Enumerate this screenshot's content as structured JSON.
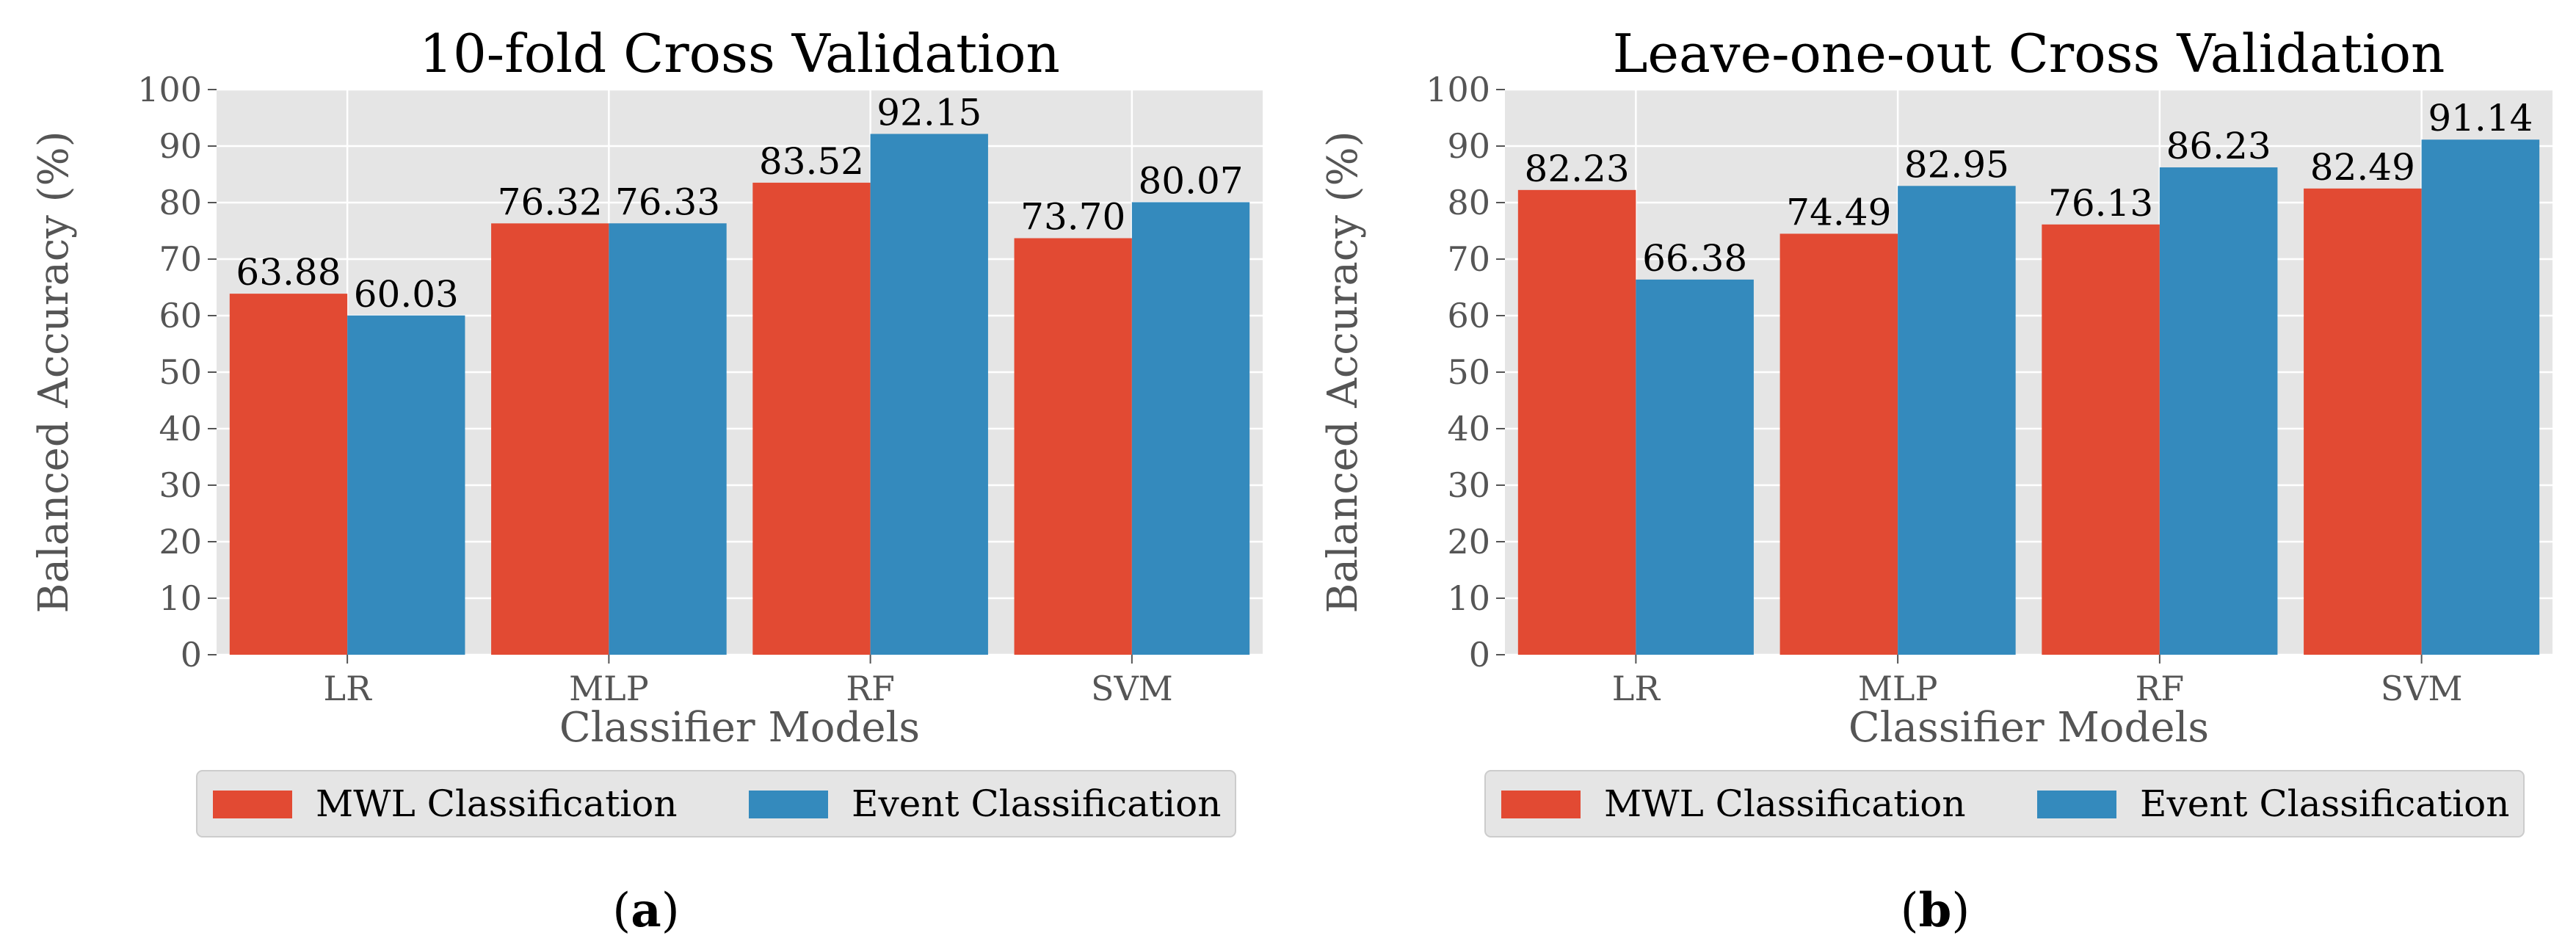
{
  "colors": {
    "mwl": "#E24A33",
    "event": "#348ABD",
    "plot_bg": "#E5E5E5",
    "grid": "#FFFFFF",
    "legend_bg": "#E5E5E5"
  },
  "legend": {
    "mwl": "MWL Classification",
    "event": "Event Classification"
  },
  "chart_data": [
    {
      "type": "bar",
      "title": "10-fold Cross Validation",
      "xlabel": "Classifier Models",
      "ylabel": "Balanced Accuracy (%)",
      "categories": [
        "LR",
        "MLP",
        "RF",
        "SVM"
      ],
      "ylim": [
        0,
        100
      ],
      "yticks": [
        0,
        10,
        20,
        30,
        40,
        50,
        60,
        70,
        80,
        90,
        100
      ],
      "grid": true,
      "legend_position": "below",
      "series": [
        {
          "name": "MWL Classification",
          "key": "mwl",
          "values": [
            63.88,
            76.32,
            83.52,
            73.7
          ],
          "labels": [
            "63.88",
            "76.32",
            "83.52",
            "73.70"
          ]
        },
        {
          "name": "Event Classification",
          "key": "event",
          "values": [
            60.03,
            76.33,
            92.15,
            80.07
          ],
          "labels": [
            "60.03",
            "76.33",
            "92.15",
            "80.07"
          ]
        }
      ],
      "caption_open": "(",
      "caption_letter": "a",
      "caption_close": ")"
    },
    {
      "type": "bar",
      "title": "Leave-one-out Cross Validation",
      "xlabel": "Classifier Models",
      "ylabel": "Balanced Accuracy (%)",
      "categories": [
        "LR",
        "MLP",
        "RF",
        "SVM"
      ],
      "ylim": [
        0,
        100
      ],
      "yticks": [
        0,
        10,
        20,
        30,
        40,
        50,
        60,
        70,
        80,
        90,
        100
      ],
      "grid": true,
      "legend_position": "below",
      "series": [
        {
          "name": "MWL Classification",
          "key": "mwl",
          "values": [
            82.23,
            74.49,
            76.13,
            82.49
          ],
          "labels": [
            "82.23",
            "74.49",
            "76.13",
            "82.49"
          ]
        },
        {
          "name": "Event Classification",
          "key": "event",
          "values": [
            66.38,
            82.95,
            86.23,
            91.14
          ],
          "labels": [
            "66.38",
            "82.95",
            "86.23",
            "91.14"
          ]
        }
      ],
      "caption_open": "(",
      "caption_letter": "b",
      "caption_close": ")"
    }
  ]
}
